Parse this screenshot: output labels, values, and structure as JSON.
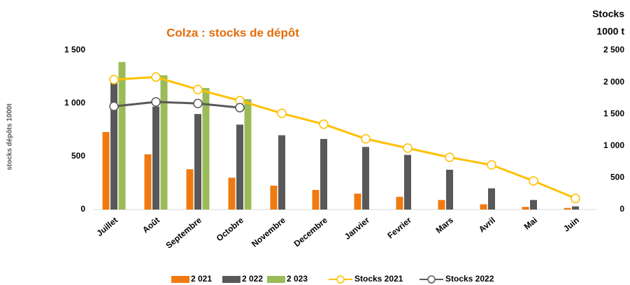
{
  "chart_data": {
    "type": "bar_line",
    "title": "Colza : stocks de dépôt",
    "ylabel": "stocks dépôts 1000t",
    "y2label": [
      "Stocks",
      "1000 t"
    ],
    "categories": [
      "Juillet",
      "Août",
      "Septembre",
      "Octobre",
      "Novembre",
      "Decembre",
      "Janvier",
      "Fevrier",
      "Mars",
      "Avril",
      "Mai",
      "Juin"
    ],
    "series": [
      {
        "name": "2 021",
        "kind": "bar",
        "color": "#f07a10",
        "values": [
          730,
          520,
          380,
          300,
          225,
          185,
          150,
          120,
          90,
          50,
          25,
          15
        ]
      },
      {
        "name": "2 022",
        "kind": "bar",
        "color": "#595959",
        "values": [
          1220,
          970,
          900,
          800,
          700,
          665,
          590,
          515,
          375,
          200,
          90,
          30
        ]
      },
      {
        "name": "2 023",
        "kind": "bar",
        "color": "#9bbb59",
        "values": [
          1390,
          1265,
          1145,
          1040,
          null,
          null,
          null,
          null,
          null,
          null,
          null,
          null
        ]
      },
      {
        "name": "Stocks 2021",
        "kind": "line",
        "axis": "y2",
        "color": "#ffc000",
        "values": [
          2040,
          2080,
          1885,
          1710,
          1510,
          1340,
          1110,
          965,
          820,
          700,
          450,
          175
        ]
      },
      {
        "name": "Stocks 2022",
        "kind": "line",
        "axis": "y2",
        "color": "#595959",
        "values": [
          1620,
          1690,
          1665,
          1600,
          null,
          null,
          null,
          null,
          null,
          null,
          null,
          null
        ]
      }
    ],
    "ylim": [
      0,
      1500
    ],
    "yticks": [
      0,
      {
        "value": 500,
        "label": "500"
      },
      {
        "value": 1000,
        "label": "1 000"
      },
      {
        "value": 1500,
        "label": "1 500"
      }
    ],
    "y2lim": [
      0,
      2500
    ],
    "y2ticks": [
      0,
      500,
      {
        "value": 1000,
        "label": "1 000"
      },
      {
        "value": 1500,
        "label": "1 500"
      },
      {
        "value": 2000,
        "label": "2 000"
      },
      {
        "value": 2500,
        "label": "2 500"
      }
    ],
    "grid": false
  }
}
